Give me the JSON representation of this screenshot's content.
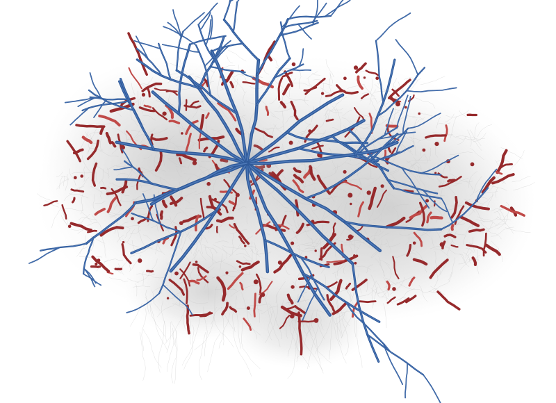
{
  "image": {
    "background_color": "#ffffff",
    "colors": {
      "blue_structure": "#2f5a9a",
      "blue_highlight": "#5b86c4",
      "red_structure": "#962a2c",
      "red_highlight": "#c04a48",
      "gray_mesh": "#c8c8c8"
    }
  }
}
